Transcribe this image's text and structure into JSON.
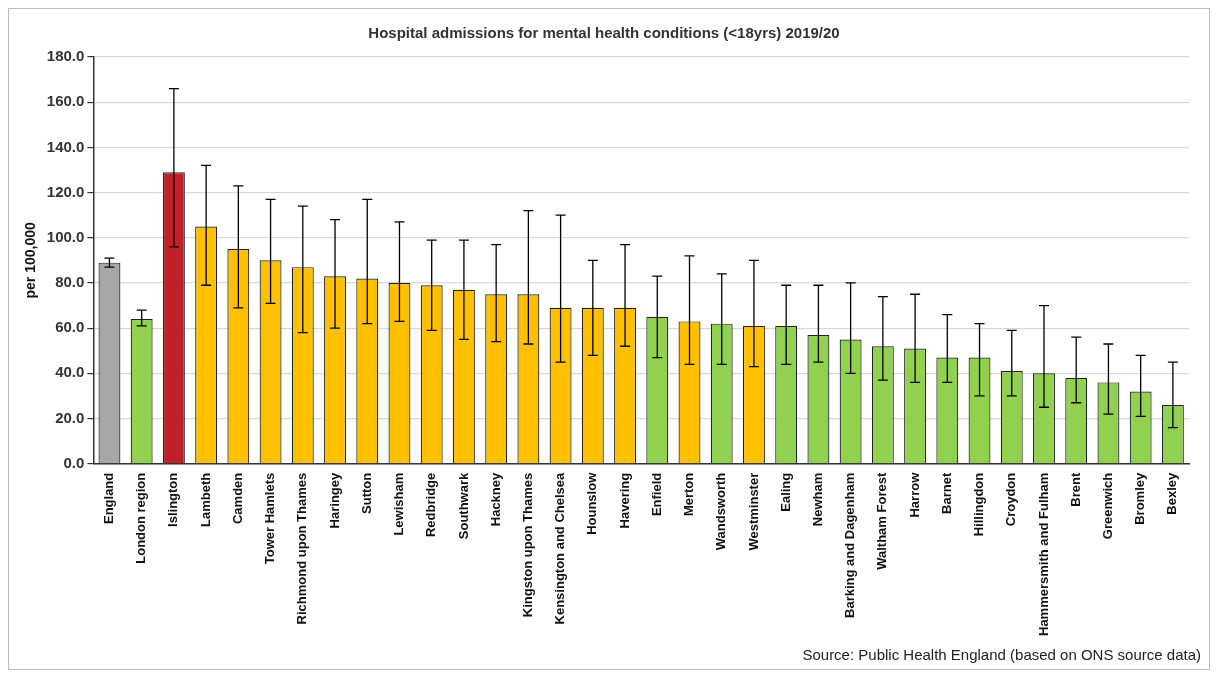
{
  "chart_data": {
    "type": "bar",
    "title": "Hospital admissions for mental health conditions (<18yrs) 2019/20",
    "ylabel": "per 100,000",
    "categories": [
      "England",
      "London region",
      "Islington",
      "Lambeth",
      "Camden",
      "Tower Hamlets",
      "Richmond upon Thames",
      "Haringey",
      "Sutton",
      "Lewisham",
      "Redbridge",
      "Southwark",
      "Hackney",
      "Kingston upon Thames",
      "Kensington and Chelsea",
      "Hounslow",
      "Havering",
      "Enfield",
      "Merton",
      "Wandsworth",
      "Westminster",
      "Ealing",
      "Newham",
      "Barking and Dagenham",
      "Waltham Forest",
      "Harrow",
      "Barnet",
      "Hillingdon",
      "Croydon",
      "Hammersmith and Fulham",
      "Brent",
      "Greenwich",
      "Bromley",
      "Bexley"
    ],
    "values": [
      89,
      64,
      129,
      105,
      95,
      90,
      87,
      83,
      82,
      80,
      79,
      77,
      75,
      75,
      69,
      69,
      69,
      65,
      63,
      62,
      61,
      61,
      57,
      55,
      52,
      51,
      47,
      47,
      41,
      40,
      38,
      36,
      32,
      26
    ],
    "errors": [
      [
        87,
        91
      ],
      [
        61,
        68
      ],
      [
        96,
        166
      ],
      [
        79,
        132
      ],
      [
        69,
        123
      ],
      [
        71,
        117
      ],
      [
        58,
        114
      ],
      [
        60,
        108
      ],
      [
        62,
        117
      ],
      [
        63,
        107
      ],
      [
        59,
        99
      ],
      [
        55,
        99
      ],
      [
        54,
        97
      ],
      [
        53,
        112
      ],
      [
        45,
        110
      ],
      [
        48,
        90
      ],
      [
        52,
        97
      ],
      [
        47,
        83
      ],
      [
        44,
        92
      ],
      [
        44,
        84
      ],
      [
        43,
        90
      ],
      [
        44,
        79
      ],
      [
        45,
        79
      ],
      [
        40,
        80
      ],
      [
        37,
        74
      ],
      [
        36,
        75
      ],
      [
        36,
        66
      ],
      [
        30,
        62
      ],
      [
        30,
        59
      ],
      [
        25,
        70
      ],
      [
        27,
        56
      ],
      [
        22,
        53
      ],
      [
        21,
        48
      ],
      [
        16,
        45
      ]
    ],
    "colors": [
      "#a6a6a6",
      "#92d050",
      "#c0202a",
      "#ffc000",
      "#ffc000",
      "#ffc000",
      "#ffc000",
      "#ffc000",
      "#ffc000",
      "#ffc000",
      "#ffc000",
      "#ffc000",
      "#ffc000",
      "#ffc000",
      "#ffc000",
      "#ffc000",
      "#ffc000",
      "#92d050",
      "#ffc000",
      "#92d050",
      "#ffc000",
      "#92d050",
      "#92d050",
      "#92d050",
      "#92d050",
      "#92d050",
      "#92d050",
      "#92d050",
      "#92d050",
      "#92d050",
      "#92d050",
      "#92d050",
      "#92d050",
      "#92d050"
    ],
    "ylim": [
      0,
      180
    ],
    "yticks": [
      {
        "value": 0,
        "label": "0.0"
      },
      {
        "value": 20,
        "label": "20.0"
      },
      {
        "value": 40,
        "label": "40.0"
      },
      {
        "value": 60,
        "label": "60.0"
      },
      {
        "value": 80,
        "label": "80.0"
      },
      {
        "value": 100,
        "label": "100.0"
      },
      {
        "value": 120,
        "label": "120.0"
      },
      {
        "value": 140,
        "label": "140.0"
      },
      {
        "value": 160,
        "label": "160.0"
      },
      {
        "value": 180,
        "label": "180.0"
      }
    ],
    "grid": "y",
    "annotations": [
      "Source: Public Health England (based on ONS source data)"
    ]
  }
}
